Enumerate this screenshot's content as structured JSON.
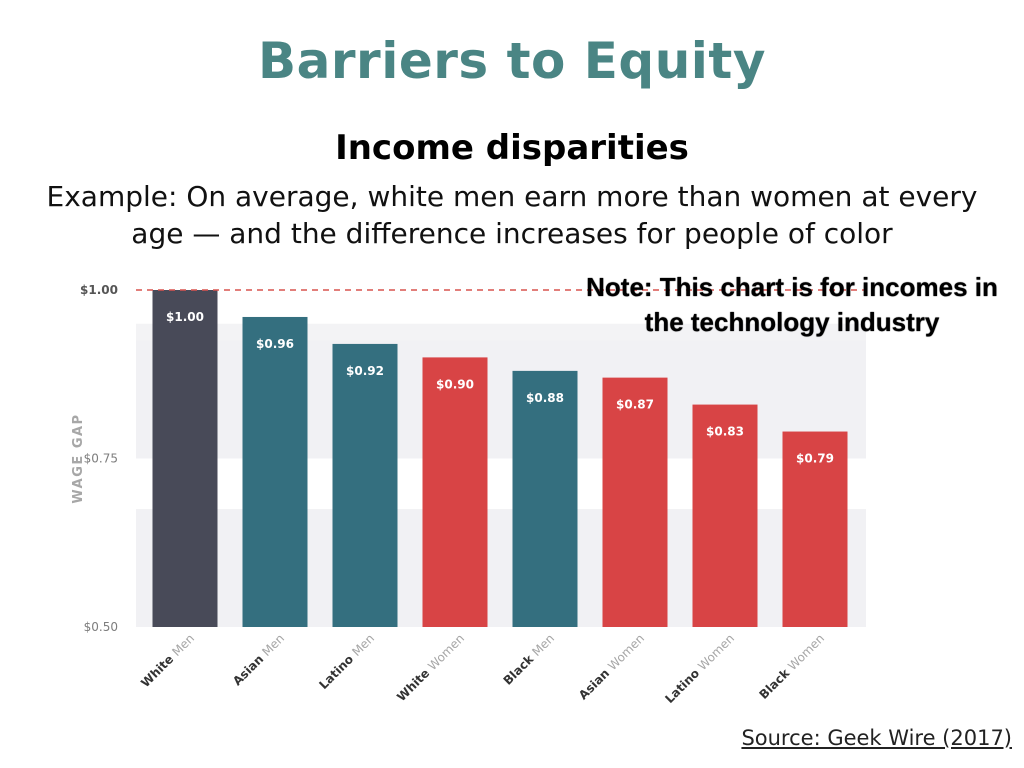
{
  "slide": {
    "title": "Barriers to Equity",
    "subtitle": "Income disparities",
    "example": "Example: On average, white men earn more than women at every age — and the difference increases for people of color",
    "note": "Note: This chart is for incomes in the technology industry",
    "source": "Source: Geek Wire (2017)"
  },
  "chart_data": {
    "type": "bar",
    "ylabel": "WAGE GAP",
    "ylim": [
      0.5,
      1.0
    ],
    "yticks": [
      {
        "value": 1.0,
        "label": "$1.00"
      },
      {
        "value": 0.75,
        "label": "$0.75"
      },
      {
        "value": 0.5,
        "label": "$0.50"
      }
    ],
    "reference_line": {
      "value": 1.0,
      "style": "dashed",
      "color": "#d9534f"
    },
    "grid_bands": "alternating light gray",
    "categories": [
      {
        "bold": "White",
        "light": "Men"
      },
      {
        "bold": "Asian",
        "light": "Men"
      },
      {
        "bold": "Latino",
        "light": "Men"
      },
      {
        "bold": "White",
        "light": "Women"
      },
      {
        "bold": "Black",
        "light": "Men"
      },
      {
        "bold": "Asian",
        "light": "Women"
      },
      {
        "bold": "Latino",
        "light": "Women"
      },
      {
        "bold": "Black",
        "light": "Women"
      }
    ],
    "values": [
      1.0,
      0.96,
      0.92,
      0.9,
      0.88,
      0.87,
      0.83,
      0.79
    ],
    "value_labels": [
      "$1.00",
      "$0.96",
      "$0.92",
      "$0.90",
      "$0.88",
      "$0.87",
      "$0.83",
      "$0.79"
    ],
    "colors": [
      "#484a58",
      "#346f7f",
      "#346f7f",
      "#d84445",
      "#346f7f",
      "#d84445",
      "#d84445",
      "#d84445"
    ]
  }
}
